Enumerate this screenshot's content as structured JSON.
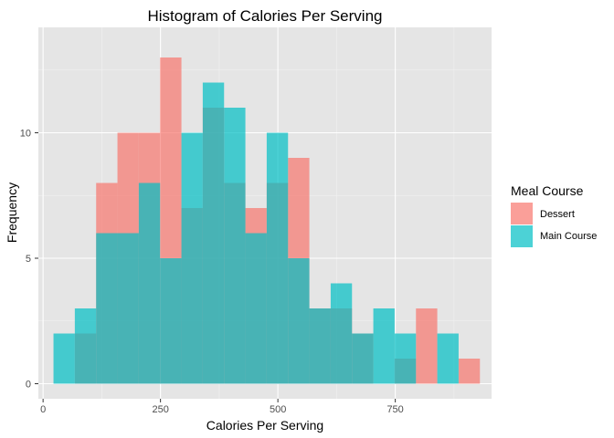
{
  "chart_data": {
    "type": "histogram",
    "title": "Histogram of Calories Per Serving",
    "xlabel": "Calories Per Serving",
    "ylabel": "Frequency",
    "xlim": [
      -10,
      955
    ],
    "ylim": [
      -0.6,
      14.2
    ],
    "x_ticks": [
      0,
      250,
      500,
      750
    ],
    "y_ticks": [
      0,
      5,
      10
    ],
    "bin_width": 45.4,
    "bin_starts": [
      22.2,
      67.6,
      113.0,
      158.4,
      203.8,
      249.2,
      294.6,
      340.0,
      385.4,
      430.8,
      476.2,
      521.6,
      567.0,
      612.4,
      657.8,
      703.2,
      748.6,
      794.0,
      839.4,
      884.8
    ],
    "legend": {
      "title": "Meal Course",
      "position": "right"
    },
    "series": [
      {
        "name": "Dessert",
        "color": "#f8766d",
        "values": [
          0,
          2,
          8,
          10,
          10,
          13,
          7,
          11,
          8,
          7,
          8,
          9,
          3,
          3,
          2,
          0,
          1,
          3,
          0,
          1
        ]
      },
      {
        "name": "Main Course",
        "color": "#00bfc4",
        "values": [
          2,
          3,
          6,
          6,
          8,
          5,
          10,
          12,
          11,
          6,
          10,
          5,
          3,
          4,
          2,
          3,
          2,
          0,
          2,
          0
        ]
      }
    ],
    "grid": true,
    "background": "#e5e5e5"
  }
}
